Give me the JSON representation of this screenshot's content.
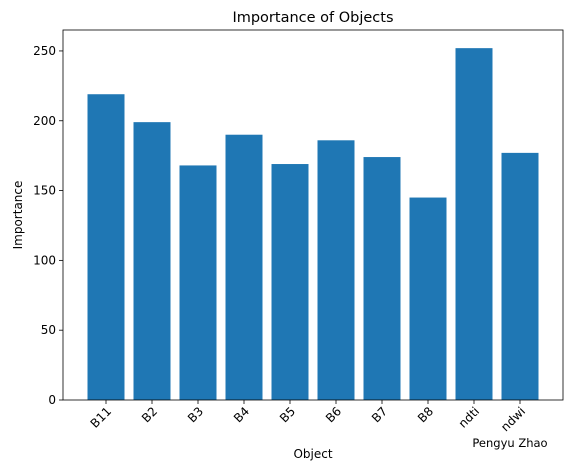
{
  "chart_data": {
    "type": "bar",
    "title": "Importance of Objects",
    "xlabel": "Object",
    "ylabel": "Importance",
    "categories": [
      "B11",
      "B2",
      "B3",
      "B4",
      "B5",
      "B6",
      "B7",
      "B8",
      "ndti",
      "ndwi"
    ],
    "values": [
      219,
      199,
      168,
      190,
      169,
      186,
      174,
      145,
      252,
      177
    ],
    "ylim": [
      0,
      265
    ],
    "yticks": [
      0,
      50,
      100,
      150,
      200,
      250
    ],
    "bar_color": "#1f77b4",
    "grid": false,
    "legend": "none",
    "x_tick_rotation": 45
  },
  "watermark": "Pengyu Zhao"
}
